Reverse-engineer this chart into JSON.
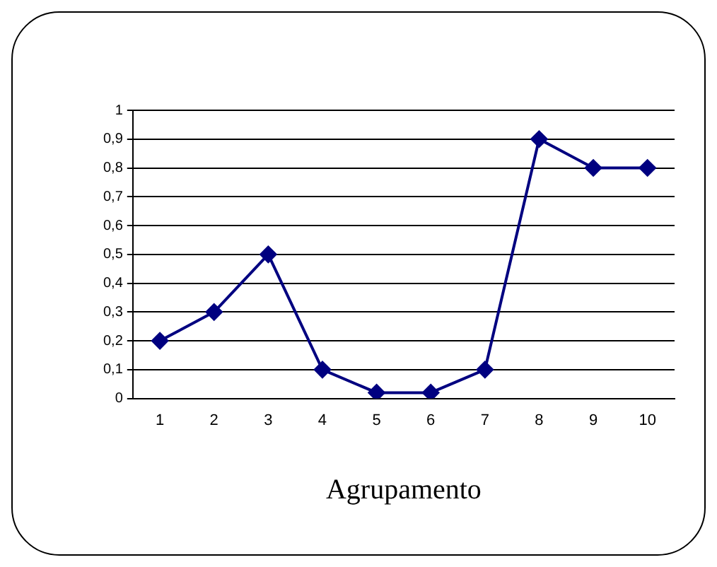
{
  "chart_data": {
    "type": "line",
    "xlabel": "Agrupamento",
    "categories": [
      "1",
      "2",
      "3",
      "4",
      "5",
      "6",
      "7",
      "8",
      "9",
      "10"
    ],
    "series": [
      {
        "color": "#000080",
        "values": [
          0.2,
          0.3,
          0.5,
          0.1,
          0.02,
          0.02,
          0.1,
          0.9,
          0.8,
          0.8
        ]
      }
    ],
    "ylim": [
      0,
      1
    ],
    "yticks": [
      0,
      {
        "value": 0.1,
        "label": "0,1"
      },
      {
        "value": 0.2,
        "label": "0,2"
      },
      {
        "value": 0.3,
        "label": "0,3"
      },
      {
        "value": 0.4,
        "label": "0,4"
      },
      {
        "value": 0.5,
        "label": "0,5"
      },
      {
        "value": 0.6,
        "label": "0,6"
      },
      {
        "value": 0.7,
        "label": "0,7"
      },
      {
        "value": 0.8,
        "label": "0,8"
      },
      {
        "value": 0.9,
        "label": "0,9"
      },
      1
    ],
    "grid": "y",
    "marker": "diamond",
    "line_style": "solid",
    "legend": false
  }
}
